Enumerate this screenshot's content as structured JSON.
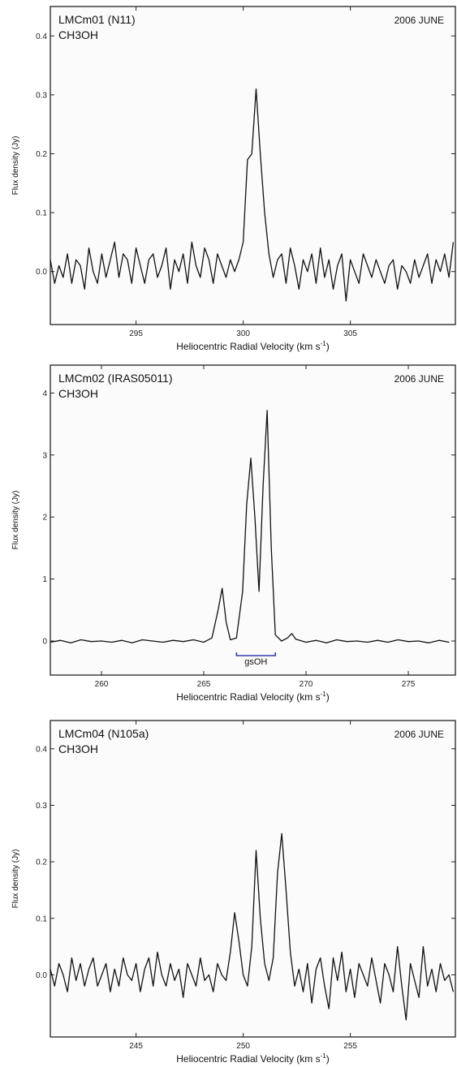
{
  "chart_data": [
    {
      "type": "line",
      "title": "LMCm01 (N11)",
      "subtitle": "CH3OH",
      "date": "2006 JUNE",
      "xlabel": "Heliocentric Radial Velocity (km s",
      "xlabel_sup": "-1",
      "xlabel_end": ")",
      "ylabel": "Flux density (Jy)",
      "xlim": [
        291.0,
        309.9
      ],
      "ylim": [
        -0.09,
        0.45
      ],
      "xticks": [
        295,
        300,
        305
      ],
      "yticks": [
        0.0,
        0.1,
        0.2,
        0.3,
        0.4
      ],
      "ytick_labels": [
        "0.0",
        "0.1",
        "0.2",
        "0.3",
        "0.4"
      ],
      "grid": false,
      "series": [
        {
          "x": [
            291.0,
            291.2,
            291.4,
            291.6,
            291.8,
            292.0,
            292.2,
            292.4,
            292.6,
            292.8,
            293.0,
            293.2,
            293.4,
            293.6,
            293.8,
            294.0,
            294.2,
            294.4,
            294.6,
            294.8,
            295.0,
            295.2,
            295.4,
            295.6,
            295.8,
            296.0,
            296.2,
            296.4,
            296.6,
            296.8,
            297.0,
            297.2,
            297.4,
            297.6,
            297.8,
            298.0,
            298.2,
            298.4,
            298.6,
            298.8,
            299.0,
            299.2,
            299.4,
            299.6,
            299.8,
            300.0,
            300.2,
            300.4,
            300.6,
            300.8,
            301.0,
            301.2,
            301.4,
            301.6,
            301.8,
            302.0,
            302.2,
            302.4,
            302.6,
            302.8,
            303.0,
            303.2,
            303.4,
            303.6,
            303.8,
            304.0,
            304.2,
            304.4,
            304.6,
            304.8,
            305.0,
            305.2,
            305.4,
            305.6,
            305.8,
            306.0,
            306.2,
            306.4,
            306.6,
            306.8,
            307.0,
            307.2,
            307.4,
            307.6,
            307.8,
            308.0,
            308.2,
            308.4,
            308.6,
            308.8,
            309.0,
            309.2,
            309.4,
            309.6,
            309.8
          ],
          "y": [
            0.02,
            -0.02,
            0.01,
            -0.01,
            0.03,
            -0.02,
            0.02,
            0.01,
            -0.03,
            0.04,
            0.0,
            -0.02,
            0.03,
            -0.01,
            0.02,
            0.05,
            -0.01,
            0.03,
            0.02,
            -0.02,
            0.04,
            0.01,
            -0.02,
            0.02,
            0.03,
            -0.01,
            0.01,
            0.04,
            -0.03,
            0.02,
            0.0,
            0.03,
            -0.02,
            0.05,
            0.01,
            -0.01,
            0.04,
            0.02,
            -0.02,
            0.03,
            0.01,
            -0.01,
            0.02,
            0.0,
            0.02,
            0.05,
            0.19,
            0.2,
            0.31,
            0.2,
            0.1,
            0.03,
            -0.01,
            0.02,
            0.03,
            -0.02,
            0.04,
            0.01,
            -0.03,
            0.02,
            0.0,
            0.03,
            -0.02,
            0.04,
            -0.01,
            0.02,
            -0.03,
            0.01,
            0.03,
            -0.05,
            0.02,
            0.0,
            -0.02,
            0.03,
            0.01,
            -0.01,
            0.02,
            0.0,
            -0.02,
            0.01,
            0.02,
            -0.03,
            0.01,
            0.0,
            -0.02,
            0.02,
            -0.01,
            0.01,
            0.03,
            -0.02,
            0.02,
            0.0,
            0.03,
            -0.01,
            0.05
          ]
        }
      ]
    },
    {
      "type": "line",
      "title": "LMCm02 (IRAS05011)",
      "subtitle": "CH3OH",
      "date": "2006 JUNE",
      "xlabel": "Heliocentric Radial Velocity (km s",
      "xlabel_sup": "-1",
      "xlabel_end": ")",
      "ylabel": "Flux density (Jy)",
      "xlim": [
        257.5,
        277.3
      ],
      "ylim": [
        -0.55,
        4.45
      ],
      "xticks": [
        260,
        265,
        270,
        275
      ],
      "yticks": [
        0,
        1,
        2,
        3,
        4
      ],
      "ytick_labels": [
        "0",
        "1",
        "2",
        "3",
        "4"
      ],
      "grid": false,
      "annotation": {
        "label": "gsOH",
        "x_start": 266.6,
        "x_end": 268.5
      },
      "series": [
        {
          "x": [
            257.5,
            258.0,
            258.5,
            259.0,
            259.5,
            260.0,
            260.5,
            261.0,
            261.5,
            262.0,
            262.5,
            263.0,
            263.5,
            264.0,
            264.5,
            265.0,
            265.4,
            265.7,
            265.9,
            266.1,
            266.3,
            266.6,
            266.9,
            267.1,
            267.3,
            267.5,
            267.7,
            267.9,
            268.1,
            268.3,
            268.5,
            268.8,
            269.1,
            269.3,
            269.5,
            270.0,
            270.5,
            271.0,
            271.5,
            272.0,
            272.5,
            273.0,
            273.5,
            274.0,
            274.5,
            275.0,
            275.5,
            276.0,
            276.5,
            277.0
          ],
          "y": [
            -0.02,
            0.01,
            -0.03,
            0.02,
            -0.01,
            0.0,
            -0.02,
            0.01,
            -0.03,
            0.02,
            0.0,
            -0.02,
            0.01,
            -0.01,
            0.02,
            -0.02,
            0.05,
            0.5,
            0.85,
            0.3,
            0.02,
            0.05,
            0.8,
            2.2,
            2.95,
            2.0,
            0.8,
            2.5,
            3.72,
            1.5,
            0.1,
            0.0,
            0.05,
            0.12,
            0.03,
            -0.02,
            0.01,
            -0.03,
            0.02,
            -0.01,
            0.0,
            -0.02,
            0.01,
            -0.02,
            0.02,
            -0.01,
            0.0,
            -0.03,
            0.01,
            -0.02
          ]
        }
      ]
    },
    {
      "type": "line",
      "title": "LMCm04 (N105a)",
      "subtitle": "CH3OH",
      "date": "2006 JUNE",
      "xlabel": "Heliocentric Radial Velocity (km s",
      "xlabel_sup": "-1",
      "xlabel_end": ")",
      "ylabel": "Flux density (Jy)",
      "xlim": [
        241.0,
        259.9
      ],
      "ylim": [
        -0.11,
        0.45
      ],
      "xticks": [
        245,
        250,
        255
      ],
      "yticks": [
        0.0,
        0.1,
        0.2,
        0.3,
        0.4
      ],
      "ytick_labels": [
        "0.0",
        "0.1",
        "0.2",
        "0.3",
        "0.4"
      ],
      "grid": false,
      "series": [
        {
          "x": [
            241.0,
            241.2,
            241.4,
            241.6,
            241.8,
            242.0,
            242.2,
            242.4,
            242.6,
            242.8,
            243.0,
            243.2,
            243.4,
            243.6,
            243.8,
            244.0,
            244.2,
            244.4,
            244.6,
            244.8,
            245.0,
            245.2,
            245.4,
            245.6,
            245.8,
            246.0,
            246.2,
            246.4,
            246.6,
            246.8,
            247.0,
            247.2,
            247.4,
            247.6,
            247.8,
            248.0,
            248.2,
            248.4,
            248.6,
            248.8,
            249.0,
            249.2,
            249.4,
            249.6,
            249.8,
            250.0,
            250.2,
            250.4,
            250.6,
            250.8,
            251.0,
            251.2,
            251.4,
            251.6,
            251.8,
            252.0,
            252.2,
            252.4,
            252.6,
            252.8,
            253.0,
            253.2,
            253.4,
            253.6,
            253.8,
            254.0,
            254.2,
            254.4,
            254.6,
            254.8,
            255.0,
            255.2,
            255.4,
            255.6,
            255.8,
            256.0,
            256.2,
            256.4,
            256.6,
            256.8,
            257.0,
            257.2,
            257.4,
            257.6,
            257.8,
            258.0,
            258.2,
            258.4,
            258.6,
            258.8,
            259.0,
            259.2,
            259.4,
            259.6,
            259.8
          ],
          "y": [
            0.01,
            -0.02,
            0.02,
            0.0,
            -0.03,
            0.03,
            -0.01,
            0.02,
            -0.02,
            0.01,
            0.03,
            -0.02,
            0.0,
            0.02,
            -0.03,
            0.01,
            -0.02,
            0.03,
            0.0,
            -0.01,
            0.02,
            -0.03,
            0.01,
            0.03,
            -0.02,
            0.04,
            0.0,
            -0.02,
            0.02,
            -0.01,
            0.01,
            -0.04,
            0.02,
            0.0,
            -0.02,
            0.03,
            -0.01,
            0.0,
            -0.03,
            0.02,
            0.0,
            -0.01,
            0.04,
            0.11,
            0.06,
            0.0,
            -0.02,
            0.05,
            0.22,
            0.1,
            0.02,
            -0.01,
            0.03,
            0.18,
            0.25,
            0.15,
            0.04,
            -0.02,
            0.01,
            -0.03,
            0.02,
            -0.05,
            0.01,
            0.03,
            -0.02,
            -0.06,
            0.03,
            -0.01,
            0.04,
            -0.03,
            0.01,
            -0.04,
            0.02,
            0.0,
            -0.02,
            0.03,
            -0.01,
            -0.05,
            0.02,
            0.0,
            -0.03,
            0.05,
            -0.02,
            -0.08,
            0.02,
            -0.01,
            -0.04,
            0.05,
            -0.02,
            0.01,
            -0.03,
            0.02,
            -0.01,
            0.0,
            -0.03
          ]
        }
      ]
    }
  ]
}
